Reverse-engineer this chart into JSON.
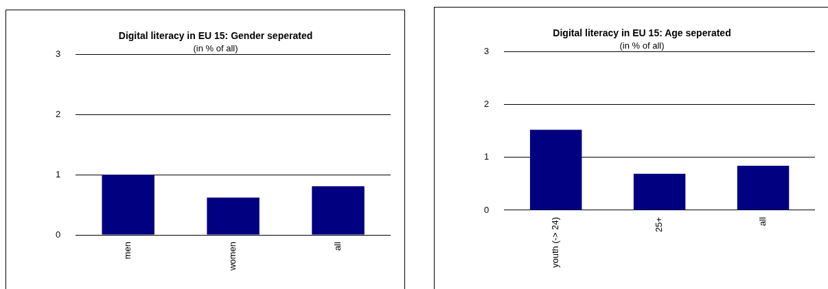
{
  "chart_data": [
    {
      "type": "bar",
      "title": "Digital literacy in EU 15: Gender seperated",
      "subtitle": "(in % of all)",
      "categories": [
        "men",
        "women",
        "all"
      ],
      "series": [
        {
          "color": "#000080",
          "values": [
            1.0,
            0.62,
            0.81
          ]
        }
      ],
      "ylim": [
        0,
        3
      ],
      "yticks": [
        0,
        1,
        2,
        3
      ],
      "grid": "y",
      "legend": false
    },
    {
      "type": "bar",
      "title": "Digital literacy in EU 15: Age seperated",
      "subtitle": "(in % of all)",
      "categories": [
        "youth (-> 24)",
        "25+",
        "all"
      ],
      "series": [
        {
          "color": "#000080",
          "values": [
            1.52,
            0.69,
            0.84
          ]
        }
      ],
      "ylim": [
        0,
        3
      ],
      "yticks": [
        0,
        1,
        2,
        3
      ],
      "grid": "y",
      "legend": false
    }
  ]
}
